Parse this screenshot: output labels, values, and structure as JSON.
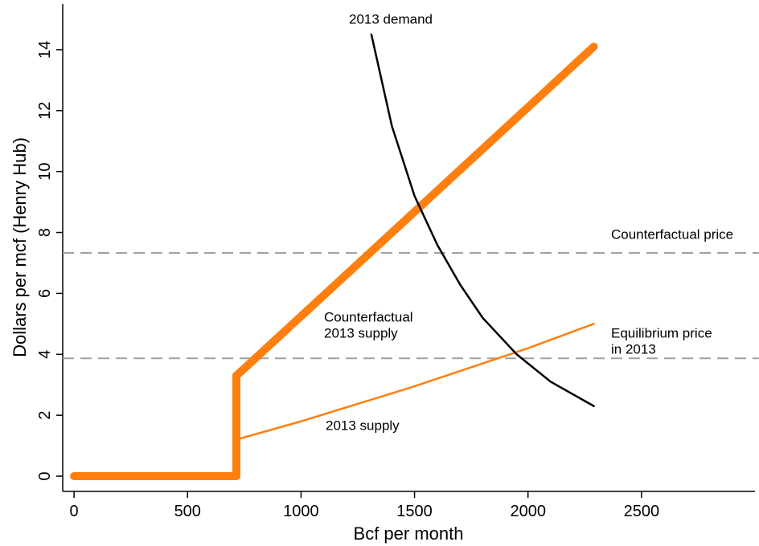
{
  "chart_data": {
    "type": "line",
    "x_label": "Bcf per month",
    "y_label": "Dollars per mcf (Henry Hub)",
    "xlim": [
      -50,
      3000
    ],
    "ylim": [
      -0.5,
      15.5
    ],
    "xticks": [
      0,
      500,
      1000,
      1500,
      2000,
      2500
    ],
    "yticks": [
      0,
      2,
      4,
      6,
      8,
      10,
      12,
      14
    ],
    "series": [
      {
        "name": "Counterfactual 2013 supply",
        "color": "#ff7f0e",
        "width": 10,
        "x": [
          0,
          715,
          715,
          745,
          2290
        ],
        "values": [
          0,
          0,
          3.3,
          3.5,
          14.1
        ]
      },
      {
        "name": "2013 supply",
        "color": "#ff7f0e",
        "width": 2.5,
        "x": [
          715,
          1000,
          1500,
          2000,
          2290
        ],
        "values": [
          1.2,
          1.8,
          2.95,
          4.2,
          5.0
        ]
      },
      {
        "name": "2013 demand",
        "color": "#000000",
        "width": 2.5,
        "x": [
          1310,
          1400,
          1500,
          1600,
          1700,
          1800,
          1950,
          2100,
          2290
        ],
        "values": [
          14.5,
          11.5,
          9.2,
          7.6,
          6.3,
          5.2,
          4.0,
          3.1,
          2.3
        ]
      }
    ],
    "hlines": [
      {
        "value": 7.33,
        "color": "#a0a0a0"
      },
      {
        "value": 3.87,
        "color": "#a0a0a0"
      }
    ],
    "annotations": [
      {
        "text": [
          "2013 demand"
        ]
      },
      {
        "text": [
          "Counterfactual price"
        ]
      },
      {
        "text": [
          "Counterfactual",
          "2013 supply"
        ]
      },
      {
        "text": [
          "Equilibrium price",
          "in 2013"
        ]
      },
      {
        "text": [
          "2013 supply"
        ]
      }
    ]
  }
}
